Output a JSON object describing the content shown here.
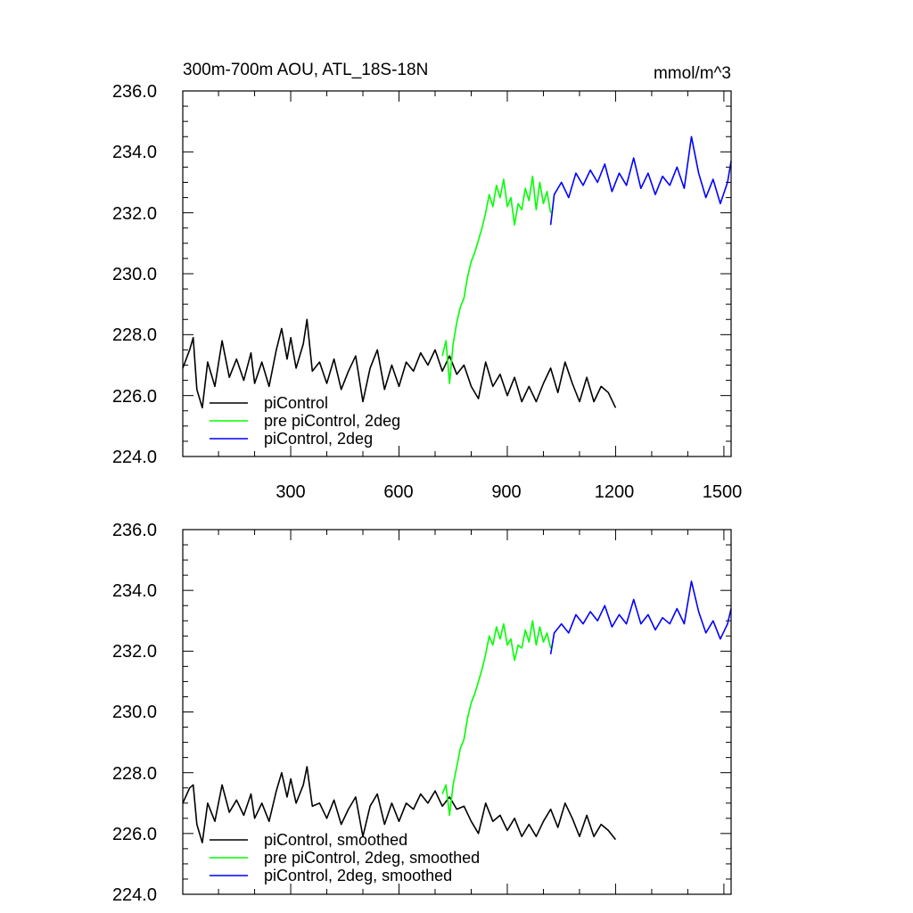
{
  "chart_data": [
    {
      "type": "line",
      "title": "300m-700m AOU, ATL_18S-18N",
      "units": "mmol/m^3",
      "xlabel": "",
      "ylabel": "",
      "xlim": [
        1,
        1520
      ],
      "ylim": [
        224.0,
        236.0
      ],
      "yticks": [
        "224.0",
        "226.0",
        "228.0",
        "230.0",
        "232.0",
        "234.0",
        "236.0"
      ],
      "xticks": [
        "300",
        "600",
        "900",
        "1200",
        "1500"
      ],
      "legend_position": "bottom-left",
      "grid": false,
      "smoothed": false,
      "series": [
        {
          "name": "piControl",
          "color": "#000000",
          "points": [
            [
              1,
              226.9
            ],
            [
              20,
              227.5
            ],
            [
              30,
              227.9
            ],
            [
              40,
              226.2
            ],
            [
              55,
              225.6
            ],
            [
              70,
              227.1
            ],
            [
              90,
              226.3
            ],
            [
              110,
              227.8
            ],
            [
              130,
              226.6
            ],
            [
              150,
              227.2
            ],
            [
              170,
              226.5
            ],
            [
              190,
              227.4
            ],
            [
              200,
              226.4
            ],
            [
              220,
              227.1
            ],
            [
              240,
              226.3
            ],
            [
              260,
              227.5
            ],
            [
              275,
              228.2
            ],
            [
              290,
              227.2
            ],
            [
              300,
              227.9
            ],
            [
              315,
              226.9
            ],
            [
              335,
              227.7
            ],
            [
              345,
              228.5
            ],
            [
              360,
              226.8
            ],
            [
              380,
              227.1
            ],
            [
              400,
              226.4
            ],
            [
              420,
              227.2
            ],
            [
              440,
              226.2
            ],
            [
              460,
              226.8
            ],
            [
              480,
              227.3
            ],
            [
              500,
              225.8
            ],
            [
              520,
              226.9
            ],
            [
              540,
              227.5
            ],
            [
              560,
              226.2
            ],
            [
              580,
              227.0
            ],
            [
              600,
              226.3
            ],
            [
              620,
              227.1
            ],
            [
              640,
              226.8
            ],
            [
              660,
              227.4
            ],
            [
              680,
              227.0
            ],
            [
              700,
              227.5
            ],
            [
              720,
              226.8
            ],
            [
              740,
              227.3
            ],
            [
              760,
              226.7
            ],
            [
              780,
              227.0
            ],
            [
              800,
              226.3
            ],
            [
              820,
              225.9
            ],
            [
              840,
              227.1
            ],
            [
              860,
              226.3
            ],
            [
              880,
              226.7
            ],
            [
              900,
              226.0
            ],
            [
              920,
              226.6
            ],
            [
              940,
              225.8
            ],
            [
              960,
              226.3
            ],
            [
              980,
              225.8
            ],
            [
              1000,
              226.4
            ],
            [
              1020,
              226.9
            ],
            [
              1040,
              226.1
            ],
            [
              1060,
              227.1
            ],
            [
              1080,
              226.4
            ],
            [
              1100,
              225.8
            ],
            [
              1120,
              226.6
            ],
            [
              1140,
              225.8
            ],
            [
              1160,
              226.3
            ],
            [
              1180,
              226.1
            ],
            [
              1200,
              225.6
            ]
          ]
        },
        {
          "name": "pre piControl, 2deg",
          "color": "#00ff00",
          "points": [
            [
              720,
              227.3
            ],
            [
              730,
              227.8
            ],
            [
              740,
              226.4
            ],
            [
              750,
              227.7
            ],
            [
              760,
              228.4
            ],
            [
              770,
              228.9
            ],
            [
              780,
              229.2
            ],
            [
              790,
              229.9
            ],
            [
              800,
              230.4
            ],
            [
              810,
              230.7
            ],
            [
              820,
              231.1
            ],
            [
              830,
              231.5
            ],
            [
              840,
              232.0
            ],
            [
              850,
              232.6
            ],
            [
              860,
              232.2
            ],
            [
              870,
              232.9
            ],
            [
              880,
              232.5
            ],
            [
              890,
              233.1
            ],
            [
              900,
              232.2
            ],
            [
              910,
              232.5
            ],
            [
              920,
              231.6
            ],
            [
              930,
              232.3
            ],
            [
              940,
              232.1
            ],
            [
              950,
              232.8
            ],
            [
              960,
              232.4
            ],
            [
              970,
              233.2
            ],
            [
              980,
              232.1
            ],
            [
              990,
              233.0
            ],
            [
              1000,
              232.3
            ],
            [
              1010,
              232.7
            ],
            [
              1020,
              232.0
            ]
          ]
        },
        {
          "name": "piControl, 2deg",
          "color": "#0000ff",
          "points": [
            [
              1020,
              231.6
            ],
            [
              1030,
              232.6
            ],
            [
              1050,
              233.0
            ],
            [
              1070,
              232.5
            ],
            [
              1090,
              233.3
            ],
            [
              1110,
              232.9
            ],
            [
              1130,
              233.4
            ],
            [
              1150,
              233.0
            ],
            [
              1170,
              233.6
            ],
            [
              1190,
              232.7
            ],
            [
              1210,
              233.3
            ],
            [
              1230,
              232.9
            ],
            [
              1250,
              233.8
            ],
            [
              1270,
              232.8
            ],
            [
              1290,
              233.3
            ],
            [
              1310,
              232.6
            ],
            [
              1330,
              233.2
            ],
            [
              1350,
              232.9
            ],
            [
              1370,
              233.5
            ],
            [
              1390,
              232.8
            ],
            [
              1410,
              234.5
            ],
            [
              1430,
              233.3
            ],
            [
              1450,
              232.5
            ],
            [
              1470,
              233.1
            ],
            [
              1490,
              232.3
            ],
            [
              1510,
              233.0
            ],
            [
              1520,
              233.7
            ]
          ]
        }
      ]
    },
    {
      "type": "line",
      "title": "",
      "units": "",
      "xlabel": "",
      "ylabel": "",
      "xlim": [
        1,
        1520
      ],
      "ylim": [
        224.0,
        236.0
      ],
      "yticks": [
        "224.0",
        "226.0",
        "228.0",
        "230.0",
        "232.0",
        "234.0",
        "236.0"
      ],
      "xticks": [],
      "legend_position": "bottom-left",
      "grid": false,
      "smoothed": true,
      "series": [
        {
          "name": "piControl, smoothed",
          "color": "#000000",
          "points": [
            [
              1,
              227.0
            ],
            [
              20,
              227.5
            ],
            [
              30,
              227.6
            ],
            [
              40,
              226.3
            ],
            [
              55,
              225.7
            ],
            [
              70,
              227.0
            ],
            [
              90,
              226.4
            ],
            [
              110,
              227.6
            ],
            [
              130,
              226.7
            ],
            [
              150,
              227.1
            ],
            [
              170,
              226.6
            ],
            [
              190,
              227.3
            ],
            [
              200,
              226.5
            ],
            [
              220,
              227.0
            ],
            [
              240,
              226.4
            ],
            [
              260,
              227.4
            ],
            [
              275,
              228.0
            ],
            [
              290,
              227.2
            ],
            [
              300,
              227.8
            ],
            [
              315,
              227.0
            ],
            [
              335,
              227.6
            ],
            [
              345,
              228.2
            ],
            [
              360,
              226.9
            ],
            [
              380,
              227.0
            ],
            [
              400,
              226.5
            ],
            [
              420,
              227.1
            ],
            [
              440,
              226.3
            ],
            [
              460,
              226.8
            ],
            [
              480,
              227.2
            ],
            [
              500,
              225.9
            ],
            [
              520,
              226.9
            ],
            [
              540,
              227.3
            ],
            [
              560,
              226.3
            ],
            [
              580,
              227.0
            ],
            [
              600,
              226.4
            ],
            [
              620,
              227.0
            ],
            [
              640,
              226.8
            ],
            [
              660,
              227.3
            ],
            [
              680,
              227.0
            ],
            [
              700,
              227.4
            ],
            [
              720,
              226.9
            ],
            [
              740,
              227.2
            ],
            [
              760,
              226.8
            ],
            [
              780,
              226.9
            ],
            [
              800,
              226.4
            ],
            [
              820,
              226.0
            ],
            [
              840,
              227.0
            ],
            [
              860,
              226.4
            ],
            [
              880,
              226.6
            ],
            [
              900,
              226.1
            ],
            [
              920,
              226.5
            ],
            [
              940,
              225.9
            ],
            [
              960,
              226.3
            ],
            [
              980,
              225.9
            ],
            [
              1000,
              226.4
            ],
            [
              1020,
              226.8
            ],
            [
              1040,
              226.2
            ],
            [
              1060,
              227.0
            ],
            [
              1080,
              226.5
            ],
            [
              1100,
              225.9
            ],
            [
              1120,
              226.6
            ],
            [
              1140,
              225.9
            ],
            [
              1160,
              226.3
            ],
            [
              1180,
              226.1
            ],
            [
              1200,
              225.8
            ]
          ]
        },
        {
          "name": "pre piControl, 2deg, smoothed",
          "color": "#00ff00",
          "points": [
            [
              720,
              227.3
            ],
            [
              730,
              227.6
            ],
            [
              740,
              226.6
            ],
            [
              750,
              227.6
            ],
            [
              760,
              228.2
            ],
            [
              770,
              228.8
            ],
            [
              780,
              229.1
            ],
            [
              790,
              229.8
            ],
            [
              800,
              230.3
            ],
            [
              810,
              230.6
            ],
            [
              820,
              231.0
            ],
            [
              830,
              231.4
            ],
            [
              840,
              231.9
            ],
            [
              850,
              232.5
            ],
            [
              860,
              232.2
            ],
            [
              870,
              232.8
            ],
            [
              880,
              232.4
            ],
            [
              890,
              232.9
            ],
            [
              900,
              232.2
            ],
            [
              910,
              232.4
            ],
            [
              920,
              231.7
            ],
            [
              930,
              232.2
            ],
            [
              940,
              232.1
            ],
            [
              950,
              232.7
            ],
            [
              960,
              232.3
            ],
            [
              970,
              233.0
            ],
            [
              980,
              232.2
            ],
            [
              990,
              232.8
            ],
            [
              1000,
              232.3
            ],
            [
              1010,
              232.6
            ],
            [
              1020,
              232.1
            ]
          ]
        },
        {
          "name": "piControl, 2deg, smoothed",
          "color": "#0000ff",
          "points": [
            [
              1020,
              231.9
            ],
            [
              1030,
              232.6
            ],
            [
              1050,
              232.9
            ],
            [
              1070,
              232.6
            ],
            [
              1090,
              233.2
            ],
            [
              1110,
              232.9
            ],
            [
              1130,
              233.3
            ],
            [
              1150,
              233.0
            ],
            [
              1170,
              233.5
            ],
            [
              1190,
              232.8
            ],
            [
              1210,
              233.2
            ],
            [
              1230,
              232.9
            ],
            [
              1250,
              233.7
            ],
            [
              1270,
              232.9
            ],
            [
              1290,
              233.2
            ],
            [
              1310,
              232.7
            ],
            [
              1330,
              233.1
            ],
            [
              1350,
              232.9
            ],
            [
              1370,
              233.4
            ],
            [
              1390,
              232.9
            ],
            [
              1410,
              234.3
            ],
            [
              1430,
              233.3
            ],
            [
              1450,
              232.6
            ],
            [
              1470,
              233.0
            ],
            [
              1490,
              232.4
            ],
            [
              1510,
              232.9
            ],
            [
              1520,
              233.4
            ]
          ]
        }
      ]
    }
  ]
}
